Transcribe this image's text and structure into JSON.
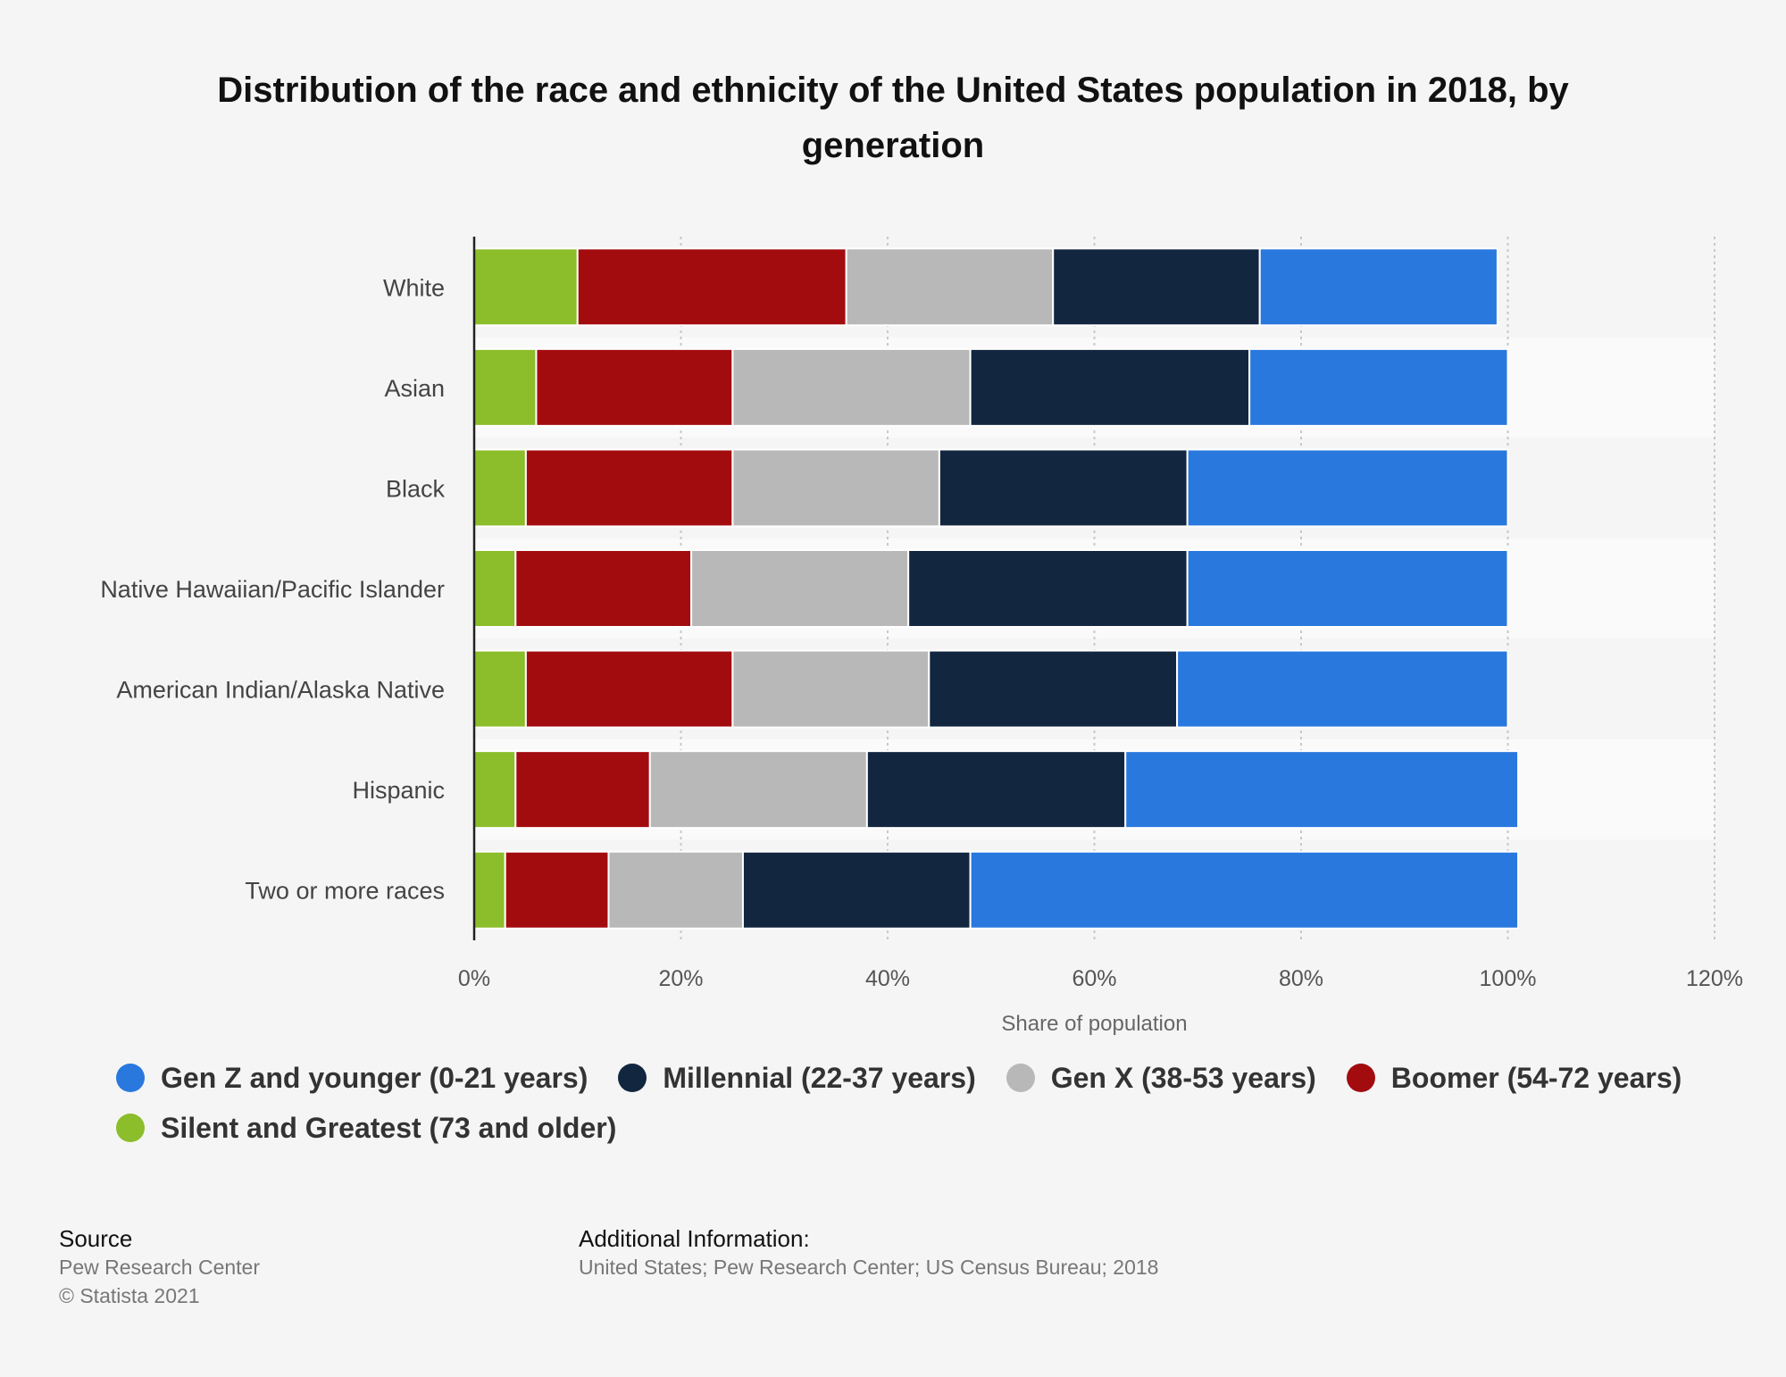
{
  "chart_data": {
    "type": "bar",
    "orientation": "horizontal",
    "stacked": true,
    "title": "Distribution of the race and ethnicity of the United States population in 2018, by generation",
    "xlabel": "Share of population",
    "ylabel": "",
    "xlim": [
      0,
      120
    ],
    "xticks": [
      "0%",
      "20%",
      "40%",
      "60%",
      "80%",
      "100%",
      "120%"
    ],
    "grid": true,
    "legend_position": "bottom",
    "categories": [
      "White",
      "Asian",
      "Black",
      "Native Hawaiian/Pacific Islander",
      "American Indian/Alaska Native",
      "Hispanic",
      "Two or more races"
    ],
    "series": [
      {
        "name": "Silent and Greatest (73 and older)",
        "color": "#8cbd2a",
        "values": [
          10,
          6,
          5,
          4,
          5,
          4,
          3
        ]
      },
      {
        "name": "Boomer (54-72 years)",
        "color": "#a30c0f",
        "values": [
          26,
          19,
          20,
          17,
          20,
          13,
          10
        ]
      },
      {
        "name": "Gen X (38-53 years)",
        "color": "#b8b8b8",
        "values": [
          20,
          23,
          20,
          21,
          19,
          21,
          13
        ]
      },
      {
        "name": "Millennial (22-37 years)",
        "color": "#13263f",
        "values": [
          20,
          27,
          24,
          27,
          24,
          25,
          22
        ]
      },
      {
        "name": "Gen Z and younger (0-21 years)",
        "color": "#2878de",
        "values": [
          23,
          25,
          31,
          31,
          32,
          38,
          53
        ]
      }
    ]
  },
  "legend_order": [
    "Gen Z and younger (0-21 years)",
    "Millennial (22-37 years)",
    "Gen X (38-53 years)",
    "Boomer (54-72 years)",
    "Silent and Greatest (73 and older)"
  ],
  "footer": {
    "source_heading": "Source",
    "source_lines": [
      "Pew Research Center",
      "© Statista 2021"
    ],
    "additional_heading": "Additional Information:",
    "additional_text": "United States; Pew Research Center; US Census Bureau; 2018"
  }
}
